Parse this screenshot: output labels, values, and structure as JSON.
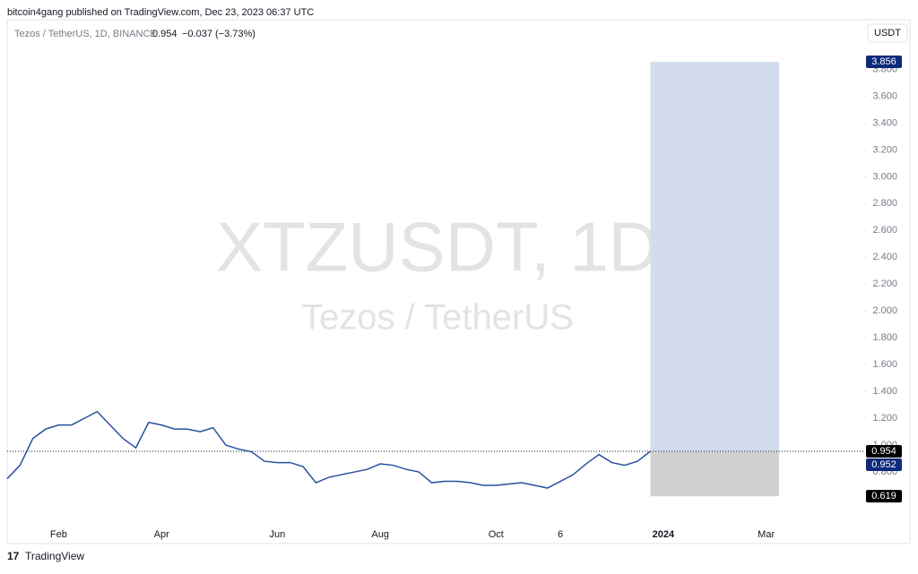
{
  "header": {
    "publisher": "bitcoin4gang published on TradingView.com, Dec 23, 2023 06:37 UTC",
    "symbol": "Tezos / TetherUS, 1D, BINANCE",
    "last": "0.954",
    "change": "−0.037 (−3.73%)",
    "currency": "USDT",
    "watermark": "XTZUSDT, 1D",
    "watermark_sub": "Tezos / TetherUS",
    "footer": "TradingView"
  },
  "chart_data": {
    "type": "line",
    "categories": [
      null,
      null,
      null,
      null,
      "Feb",
      null,
      null,
      null,
      null,
      null,
      null,
      null,
      "Apr",
      null,
      null,
      null,
      null,
      null,
      null,
      null,
      null,
      "Jun",
      null,
      null,
      null,
      null,
      null,
      null,
      null,
      "Aug",
      null,
      null,
      null,
      null,
      null,
      null,
      null,
      null,
      "Oct",
      null,
      null,
      null,
      null,
      "6",
      null,
      null,
      null,
      null,
      null,
      null,
      null,
      "2024",
      null,
      null,
      null,
      null,
      null,
      null,
      null,
      "Mar",
      null,
      null,
      null,
      null,
      null,
      null,
      null
    ],
    "series": [
      {
        "name": "XTZUSDT",
        "color": "#2a4fa0",
        "values": [
          0.75,
          0.85,
          1.05,
          1.12,
          1.15,
          1.15,
          1.2,
          1.25,
          1.15,
          1.05,
          0.98,
          1.17,
          1.15,
          1.12,
          1.12,
          1.1,
          1.13,
          1.0,
          0.97,
          0.95,
          0.88,
          0.87,
          0.87,
          0.84,
          0.72,
          0.76,
          0.78,
          0.8,
          0.82,
          0.86,
          0.85,
          0.82,
          0.8,
          0.72,
          0.73,
          0.73,
          0.72,
          0.7,
          0.7,
          0.71,
          0.72,
          0.7,
          0.68,
          0.73,
          0.78,
          0.86,
          0.93,
          0.87,
          0.85,
          0.88,
          0.954,
          null,
          null,
          null,
          null,
          null,
          null,
          null,
          null,
          null,
          null,
          null,
          null,
          null,
          null,
          null,
          null
        ]
      }
    ],
    "ylim": [
      0.38,
      4.17
    ],
    "yticks": [
      {
        "value": 0.8,
        "label": "0.800"
      },
      {
        "value": 1.0,
        "label": "1.000"
      },
      {
        "value": 1.2,
        "label": "1.200"
      },
      {
        "value": 1.4,
        "label": "1.400"
      },
      {
        "value": 1.6,
        "label": "1.600"
      },
      {
        "value": 1.8,
        "label": "1.800"
      },
      {
        "value": 2.0,
        "label": "2.000"
      },
      {
        "value": 2.2,
        "label": "2.200"
      },
      {
        "value": 2.4,
        "label": "2.400"
      },
      {
        "value": 2.6,
        "label": "2.600"
      },
      {
        "value": 2.8,
        "label": "2.800"
      },
      {
        "value": 3.0,
        "label": "3.000"
      },
      {
        "value": 3.2,
        "label": "3.200"
      },
      {
        "value": 3.4,
        "label": "3.400"
      },
      {
        "value": 3.6,
        "label": "3.600"
      },
      {
        "value": 3.8,
        "label": "3.800"
      }
    ],
    "position": {
      "entry": 0.954,
      "target": 3.856,
      "stop": 0.619,
      "profit_color": "#d3dcef",
      "loss_color": "#d0d0d0"
    },
    "price_markers": [
      {
        "value": 3.856,
        "color": "#0d2a7a"
      },
      {
        "value": 0.954,
        "color": "#000000"
      },
      {
        "value": 0.952,
        "color": "#0d2a7a"
      },
      {
        "value": 0.619,
        "color": "#000000"
      }
    ]
  }
}
